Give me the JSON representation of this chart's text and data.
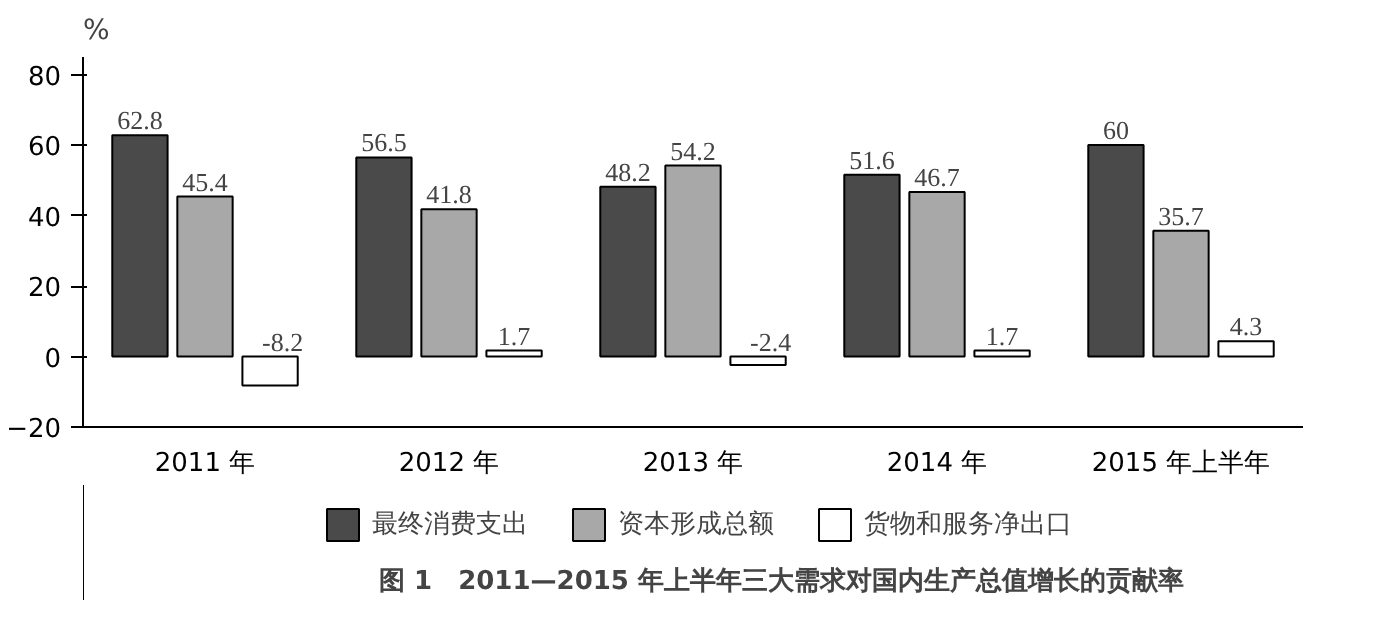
{
  "chart_data": {
    "type": "bar",
    "title": "图 1　2011—2015 年上半年三大需求对国内生产总值增长的贡献率",
    "ylabel": "%",
    "categories": [
      "2011 年",
      "2012 年",
      "2013 年",
      "2014 年",
      "2015 年上半年"
    ],
    "series": [
      {
        "name": "最终消费支出",
        "color": "#4a4a4a",
        "values": [
          62.8,
          56.5,
          48.2,
          51.6,
          60
        ]
      },
      {
        "name": "资本形成总额",
        "color": "#a8a8a8",
        "values": [
          45.4,
          41.8,
          54.2,
          46.7,
          35.7
        ]
      },
      {
        "name": "货物和服务净出口",
        "color": "#ffffff",
        "values": [
          -8.2,
          1.7,
          -2.4,
          1.7,
          4.3
        ]
      }
    ],
    "ylim": [
      -20,
      85
    ],
    "yticks": [
      -20,
      0,
      20,
      40,
      60,
      80
    ],
    "grid": false,
    "legend": "bottom",
    "data_labels": true
  }
}
